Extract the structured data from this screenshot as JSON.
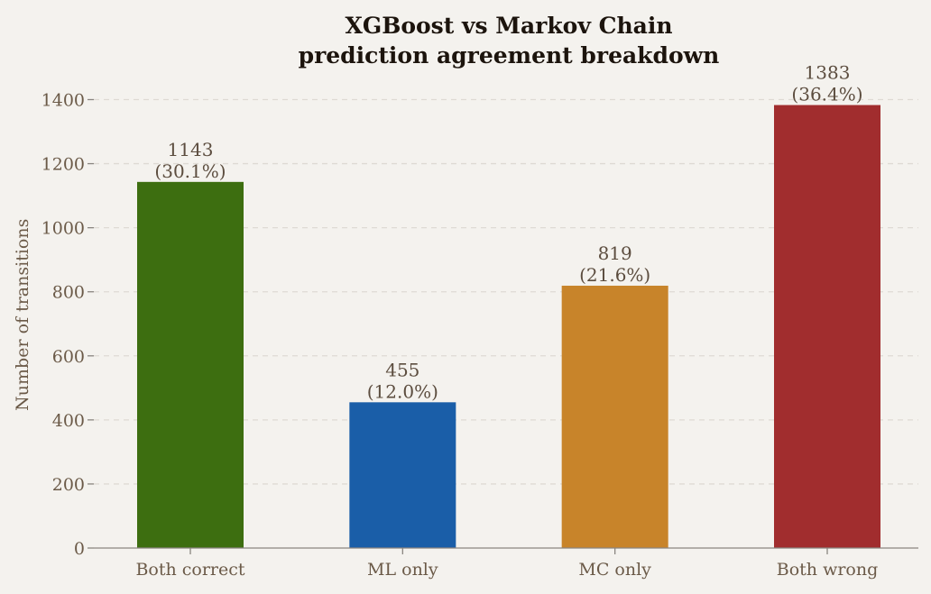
{
  "chart_data": {
    "type": "bar",
    "title": [
      "XGBoost vs Markov Chain",
      "prediction agreement breakdown"
    ],
    "xlabel": "",
    "ylabel": "Number of transitions",
    "ylim": [
      0,
      1400
    ],
    "yticks": [
      0,
      200,
      400,
      600,
      800,
      1000,
      1200,
      1400
    ],
    "grid": "y",
    "categories": [
      "Both correct",
      "ML only",
      "MC only",
      "Both wrong"
    ],
    "values": [
      1143,
      455,
      819,
      1383
    ],
    "value_labels": [
      "1143",
      "455",
      "819",
      "1383"
    ],
    "percent_labels": [
      "(30.1%)",
      "(12.0%)",
      "(21.6%)",
      "(36.4%)"
    ],
    "colors": [
      "#3d6e10",
      "#1a5ea8",
      "#c8842a",
      "#a12d2e"
    ]
  }
}
